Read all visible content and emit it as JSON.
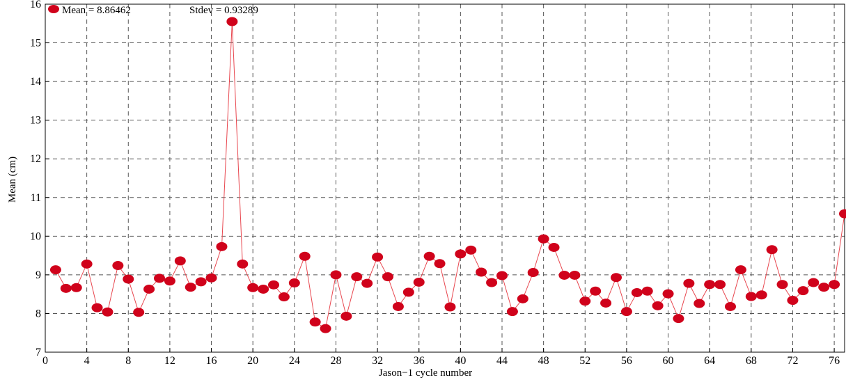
{
  "chart_data": {
    "type": "line",
    "title": "",
    "xlabel": "Jason−1 cycle number",
    "ylabel": "Mean (cm)",
    "xlim": [
      0,
      77
    ],
    "ylim": [
      7,
      16
    ],
    "xticks": [
      0,
      4,
      8,
      12,
      16,
      20,
      24,
      28,
      32,
      36,
      40,
      44,
      48,
      52,
      56,
      60,
      64,
      68,
      72,
      76
    ],
    "yticks": [
      7,
      8,
      9,
      10,
      11,
      12,
      13,
      14,
      15,
      16
    ],
    "grid": true,
    "legend_position": "top-left",
    "legend": {
      "mean_text": "Mean = 8.86462",
      "stdev_text": "Stdev = 0.93289"
    },
    "colors": {
      "marker": "#d0021b",
      "line": "#e8474f",
      "grid": "#555555"
    },
    "series": [
      {
        "x": [
          1,
          2,
          3,
          4,
          5,
          6,
          7,
          8,
          9,
          10,
          11,
          12,
          13,
          14,
          15,
          16,
          17,
          18,
          19,
          20,
          21,
          22,
          23,
          24,
          25,
          26,
          27,
          28,
          29,
          30,
          31,
          32,
          33,
          34,
          35,
          36,
          37,
          38,
          39,
          40,
          41,
          42,
          43,
          44,
          45,
          46,
          47,
          48,
          49,
          50,
          51,
          52,
          53,
          54,
          55,
          56,
          57,
          58,
          59,
          60,
          61,
          62,
          63,
          64,
          65,
          66,
          67,
          68,
          69,
          70,
          71,
          72,
          73,
          74,
          75,
          76,
          77
        ],
        "values": [
          9.13,
          8.65,
          8.67,
          9.28,
          8.15,
          8.04,
          9.24,
          8.89,
          8.03,
          8.63,
          8.91,
          8.84,
          9.36,
          8.68,
          8.82,
          8.92,
          9.73,
          15.55,
          9.28,
          8.67,
          8.63,
          8.74,
          8.43,
          8.79,
          9.48,
          7.78,
          7.61,
          9.0,
          7.93,
          8.95,
          8.78,
          9.46,
          8.95,
          8.18,
          8.55,
          8.81,
          9.48,
          9.29,
          8.17,
          9.54,
          9.64,
          9.07,
          8.8,
          8.98,
          8.05,
          8.38,
          9.06,
          9.93,
          9.71,
          8.99,
          8.99,
          8.32,
          8.58,
          8.27,
          8.93,
          8.05,
          8.54,
          8.58,
          8.2,
          8.51,
          7.87,
          8.78,
          8.26,
          8.75,
          8.75,
          8.18,
          9.13,
          8.44,
          8.48,
          9.65,
          8.75,
          8.34,
          8.59,
          8.8,
          8.68,
          8.75,
          10.58
        ]
      }
    ]
  }
}
